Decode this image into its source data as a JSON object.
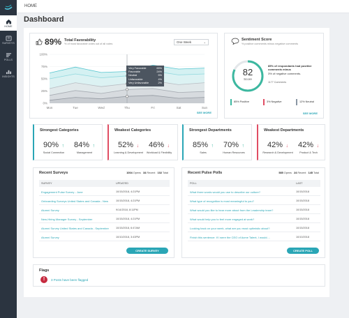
{
  "sidebar": {
    "items": [
      {
        "label": "HOME",
        "icon": "home-icon",
        "active": true
      },
      {
        "label": "SURVEYS",
        "icon": "survey-icon"
      },
      {
        "label": "POLLS",
        "icon": "polls-icon"
      },
      {
        "label": "INSIGHTS",
        "icon": "insights-icon"
      }
    ]
  },
  "topbar": {
    "breadcrumb": "HOME"
  },
  "page": {
    "title": "Dashboard"
  },
  "favorability": {
    "percent": "89%",
    "title": "Total Favorability",
    "subtitle": "% of most favorable votes out of all votes",
    "period": "One Week",
    "see_more": "SEE MORE",
    "x_labels": [
      "Mon",
      "Tue",
      "Wed",
      "Thu",
      "Fri",
      "Sat",
      "Sun"
    ],
    "y_labels": [
      "100%",
      "75%",
      "50%",
      "25%",
      "0%"
    ],
    "tooltip": [
      {
        "label": "Very Favorable",
        "value": "65%"
      },
      {
        "label": "Favorable",
        "value": "24%"
      },
      {
        "label": "Neutral",
        "value": "5%"
      },
      {
        "label": "Unfavorable",
        "value": "4%"
      },
      {
        "label": "Very Unfavorable",
        "value": "2%"
      }
    ]
  },
  "chart_data": {
    "type": "area",
    "categories": [
      "Mon",
      "Tue",
      "Wed",
      "Thu",
      "Fri",
      "Sat",
      "Sun"
    ],
    "ylim": [
      0,
      100
    ],
    "series": [
      {
        "name": "Very Favorable",
        "values": [
          62,
          74,
          63,
          65,
          78,
          70,
          72
        ]
      },
      {
        "name": "Favorable",
        "values": [
          50,
          60,
          52,
          56,
          66,
          58,
          60
        ]
      },
      {
        "name": "Neutral",
        "values": [
          30,
          42,
          34,
          40,
          46,
          38,
          42
        ]
      },
      {
        "name": "Unfavorable",
        "values": [
          16,
          26,
          20,
          28,
          30,
          22,
          24
        ]
      },
      {
        "name": "Very Unfavorable",
        "values": [
          6,
          12,
          9,
          14,
          16,
          10,
          12
        ]
      }
    ]
  },
  "sentiment": {
    "title": "Sentiment Score",
    "subtitle": "% positive comments minus negative comments",
    "score": "82",
    "score_label": "Score",
    "score_fraction": 0.82,
    "line1": "85% of respondants had positive comments minus",
    "line2": "3% of negative comments.",
    "comments": "1177 Comments",
    "stats": [
      {
        "text": "85% Positive",
        "color": "#3cb8a0"
      },
      {
        "text": "3% Negative",
        "color": "#e04d63"
      },
      {
        "text": "12% Neutral",
        "color": "#8a96a3"
      }
    ],
    "see_more": "SEE MORE"
  },
  "categories": [
    {
      "title": "Strongest Categories",
      "accent": "#2aa6b6",
      "items": [
        {
          "value": "90%",
          "dir": "up",
          "label": "Social Connection"
        },
        {
          "value": "84%",
          "dir": "up",
          "label": "Management"
        }
      ]
    },
    {
      "title": "Weakest Categories",
      "accent": "#e04d63",
      "items": [
        {
          "value": "52%",
          "dir": "down",
          "label": "Learning & Development"
        },
        {
          "value": "46%",
          "dir": "down",
          "label": "Workload & Flexibility"
        }
      ]
    },
    {
      "title": "Strongest Departments",
      "accent": "#2aa6b6",
      "items": [
        {
          "value": "85%",
          "dir": "up",
          "label": "Sales"
        },
        {
          "value": "70%",
          "dir": "up",
          "label": "Human Resources"
        }
      ]
    },
    {
      "title": "Weakest Departments",
      "accent": "#e04d63",
      "items": [
        {
          "value": "42%",
          "dir": "down",
          "label": "Research & Development"
        },
        {
          "value": "42%",
          "dir": "down",
          "label": "Product & Tech"
        }
      ]
    }
  ],
  "surveys": {
    "title": "Recent Surveys",
    "opens": "1004",
    "opens_label": "Opens",
    "recent": "34",
    "recent_label": "Recent",
    "total": "102",
    "total_label": "Total",
    "col1": "SURVEY",
    "col2": "UPDATED",
    "rows": [
      {
        "name": "Engagement Pulse Survey - June",
        "date": "10/15/2018, 4:21PM"
      },
      {
        "name": "Onboarding Surveys United States and Canada - New",
        "date": "10/15/2018, 4:21PM"
      },
      {
        "name": "Alumni Survey",
        "date": "9/14/2018, 8:11PM"
      },
      {
        "name": "New-Hiring Manager Survey - September",
        "date": "10/15/2018, 4:21PM"
      },
      {
        "name": "Alumni Survey United States and Canada - September",
        "date": "10/15/2018, 6:47AM"
      },
      {
        "name": "Alumni Survey",
        "date": "10/10/2018, 3:43PM"
      }
    ],
    "button": "CREATE SURVEY"
  },
  "polls": {
    "title": "Recent Pulse Polls",
    "opens": "585",
    "opens_label": "Opens",
    "recent": "24",
    "recent_label": "Recent",
    "total": "145",
    "total_label": "Total",
    "col1": "POLL",
    "col2": "LAST",
    "rows": [
      {
        "name": "What three words would you use to describe our culture?",
        "date": "10/15/2018"
      },
      {
        "name": "What type of recognition is most meaningful to you?",
        "date": "10/15/2018"
      },
      {
        "name": "What would you like to hear more about from the Leadership team?",
        "date": "10/15/2018"
      },
      {
        "name": "What would help you to feel more engaged at work?",
        "date": "10/15/2018"
      },
      {
        "name": "Looking back on your week, what are you most optimistic about?",
        "date": "10/15/2018"
      },
      {
        "name": "Finish this sentence: If I were the CEO of Acme Talent, I would....",
        "date": "10/10/2018"
      }
    ],
    "button": "CREATE POLL"
  },
  "flags": {
    "title": "Flags",
    "text": "3 Posts have been flagged"
  }
}
